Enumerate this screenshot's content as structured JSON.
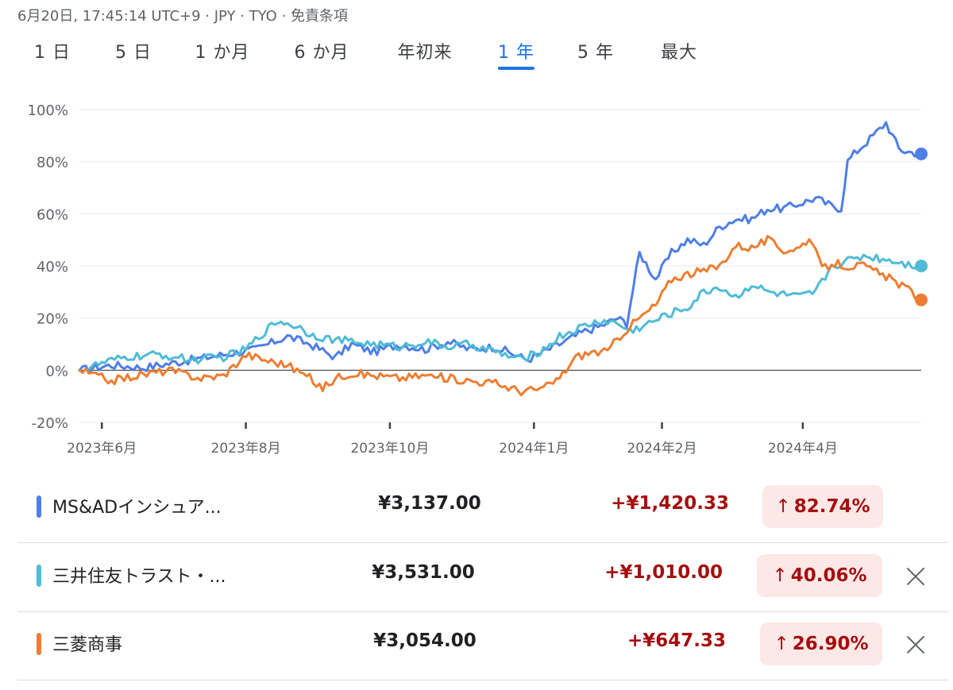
{
  "header": {
    "text": "6月20日, 17:45:14 UTC+9 · JPY · TYO · 免責条項"
  },
  "tabs": [
    {
      "label": "1 日",
      "active": false
    },
    {
      "label": "5 日",
      "active": false
    },
    {
      "label": "1 か月",
      "active": false
    },
    {
      "label": "6 か月",
      "active": false
    },
    {
      "label": "年初来",
      "active": false
    },
    {
      "label": "1 年",
      "active": true
    },
    {
      "label": "5 年",
      "active": false
    },
    {
      "label": "最大",
      "active": false
    }
  ],
  "chart_data": {
    "type": "line",
    "title": "",
    "xlabel": "",
    "ylabel": "",
    "ylim": [
      -20,
      100
    ],
    "y_ticks": [
      "100%",
      "80%",
      "60%",
      "40%",
      "20%",
      "0%",
      "-20%"
    ],
    "y_tick_values": [
      100,
      80,
      60,
      40,
      20,
      0,
      -20
    ],
    "x_tick_labels": [
      "2023年6月",
      "2023年8月",
      "2023年10月",
      "2024年1月",
      "2024年2月",
      "2024年4月"
    ],
    "x_tick_index": [
      7,
      52,
      97,
      142,
      182,
      226
    ],
    "n_points": 264,
    "grid": true,
    "series": [
      {
        "name": "MS&ADインシュア...",
        "color": "#4e7ee6",
        "x": [
          0,
          10,
          20,
          30,
          40,
          55,
          65,
          72,
          80,
          85,
          92,
          100,
          108,
          115,
          122,
          130,
          140,
          150,
          158,
          163,
          168,
          171,
          175,
          180,
          185,
          190,
          195,
          200,
          205,
          210,
          215,
          220,
          225,
          230,
          235,
          238,
          240,
          242,
          248,
          252,
          256,
          258,
          263
        ],
        "values": [
          0,
          2,
          1,
          3,
          5,
          8,
          13,
          10,
          5,
          10,
          7,
          10,
          8,
          11,
          8,
          9,
          4,
          10,
          15,
          17,
          20,
          18,
          45,
          35,
          45,
          50,
          48,
          55,
          58,
          58,
          62,
          62,
          64,
          66,
          63,
          62,
          80,
          83,
          90,
          95,
          85,
          84,
          83
        ]
      },
      {
        "name": "三井住友トラスト・...",
        "color": "#4fbbd6",
        "x": [
          0,
          8,
          15,
          25,
          35,
          45,
          52,
          57,
          62,
          68,
          72,
          78,
          85,
          92,
          100,
          108,
          115,
          122,
          130,
          138,
          145,
          150,
          158,
          163,
          168,
          172,
          178,
          185,
          190,
          195,
          200,
          205,
          210,
          215,
          220,
          225,
          230,
          235,
          240,
          245,
          250,
          255,
          258,
          263
        ],
        "values": [
          0,
          3,
          5,
          6,
          4,
          5,
          8,
          14,
          19,
          17,
          14,
          12,
          11,
          10,
          9,
          11,
          9,
          10,
          7,
          4,
          8,
          13,
          17,
          19,
          18,
          15,
          18,
          22,
          24,
          30,
          32,
          28,
          33,
          30,
          29,
          28,
          30,
          40,
          42,
          44,
          43,
          42,
          41,
          40
        ]
      },
      {
        "name": "三菱商事",
        "color": "#ed7d31",
        "x": [
          0,
          10,
          18,
          28,
          38,
          45,
          52,
          58,
          65,
          72,
          76,
          80,
          85,
          92,
          100,
          108,
          115,
          122,
          130,
          138,
          145,
          150,
          155,
          160,
          165,
          168,
          172,
          175,
          180,
          185,
          190,
          195,
          200,
          205,
          210,
          215,
          220,
          225,
          228,
          232,
          236,
          240,
          245,
          250,
          255,
          260,
          263
        ],
        "values": [
          0,
          -4,
          -2,
          0,
          -3,
          -2,
          6,
          4,
          2,
          -3,
          -7,
          -3,
          -1,
          -2,
          -3,
          -2,
          -3,
          -4,
          -5,
          -8,
          -7,
          -3,
          5,
          7,
          7,
          12,
          17,
          20,
          25,
          35,
          37,
          38,
          40,
          48,
          47,
          50,
          46,
          47,
          51,
          39,
          41,
          40,
          40,
          37,
          34,
          30,
          27
        ]
      }
    ]
  },
  "stocks": [
    {
      "name": "MS&ADインシュア...",
      "price": "¥3,137.00",
      "change": "+¥1,420.33",
      "arrow": "↑",
      "percent": "82.74%",
      "color": "#4e7ee6",
      "removable": false
    },
    {
      "name": "三井住友トラスト・...",
      "price": "¥3,531.00",
      "change": "+¥1,010.00",
      "arrow": "↑",
      "percent": "40.06%",
      "color": "#4fbbd6",
      "removable": true
    },
    {
      "name": "三菱商事",
      "price": "¥3,054.00",
      "change": "+¥647.33",
      "arrow": "↑",
      "percent": "26.90%",
      "color": "#ed7d31",
      "removable": true
    }
  ]
}
